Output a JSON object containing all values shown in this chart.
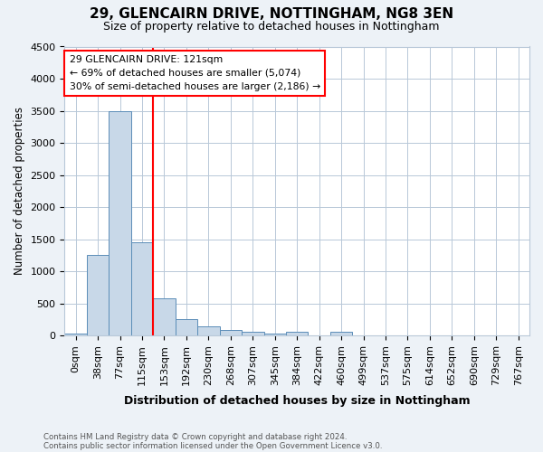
{
  "title": "29, GLENCAIRN DRIVE, NOTTINGHAM, NG8 3EN",
  "subtitle": "Size of property relative to detached houses in Nottingham",
  "xlabel": "Distribution of detached houses by size in Nottingham",
  "ylabel": "Number of detached properties",
  "footnote1": "Contains HM Land Registry data © Crown copyright and database right 2024.",
  "footnote2": "Contains public sector information licensed under the Open Government Licence v3.0.",
  "bin_labels": [
    "0sqm",
    "38sqm",
    "77sqm",
    "115sqm",
    "153sqm",
    "192sqm",
    "230sqm",
    "268sqm",
    "307sqm",
    "345sqm",
    "384sqm",
    "422sqm",
    "460sqm",
    "499sqm",
    "537sqm",
    "575sqm",
    "614sqm",
    "652sqm",
    "690sqm",
    "729sqm",
    "767sqm"
  ],
  "bar_values": [
    30,
    1250,
    3500,
    1450,
    580,
    260,
    140,
    90,
    55,
    35,
    50,
    0,
    55,
    0,
    0,
    0,
    0,
    0,
    0,
    0,
    0
  ],
  "bar_color": "#c8d8e8",
  "bar_edge_color": "#5b8db8",
  "reference_line_color": "red",
  "reference_line_x": 3.5,
  "annotation_text": "29 GLENCAIRN DRIVE: 121sqm\n← 69% of detached houses are smaller (5,074)\n30% of semi-detached houses are larger (2,186) →",
  "annotation_box_color": "white",
  "annotation_box_edge_color": "red",
  "ylim": [
    0,
    4500
  ],
  "yticks": [
    0,
    500,
    1000,
    1500,
    2000,
    2500,
    3000,
    3500,
    4000,
    4500
  ],
  "background_color": "#edf2f7",
  "plot_background_color": "white",
  "grid_color": "#b8c8d8"
}
